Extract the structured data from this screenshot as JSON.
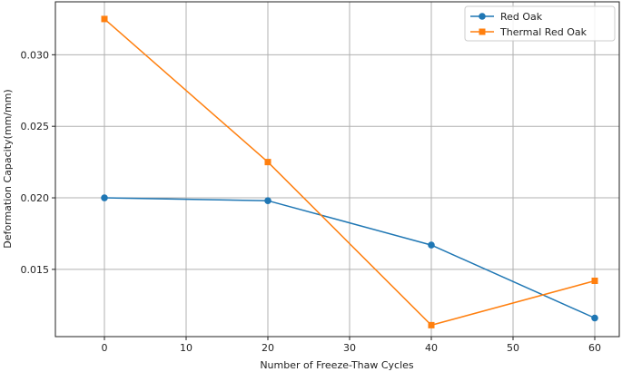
{
  "chart_data": {
    "type": "line",
    "title": "",
    "xlabel": "Number of Freeze-Thaw Cycles",
    "ylabel": "Deformation Capacity(mm/mm)",
    "x": [
      0,
      20,
      40,
      60
    ],
    "xlim": [
      -6,
      63
    ],
    "ylim": [
      0.0103,
      0.0337
    ],
    "x_ticks": [
      0,
      10,
      20,
      30,
      40,
      50,
      60
    ],
    "y_ticks": [
      0.015,
      0.02,
      0.025,
      0.03
    ],
    "y_tick_labels": [
      "0.015",
      "0.020",
      "0.025",
      "0.030"
    ],
    "grid": true,
    "legend_position": "top-right",
    "series": [
      {
        "name": "Red Oak",
        "values": [
          0.02,
          0.0198,
          0.0167,
          0.0116
        ],
        "color": "#1f77b4",
        "marker": "circle"
      },
      {
        "name": "Thermal Red Oak",
        "values": [
          0.0325,
          0.0225,
          0.0111,
          0.0142
        ],
        "color": "#ff7f0e",
        "marker": "square"
      }
    ]
  }
}
